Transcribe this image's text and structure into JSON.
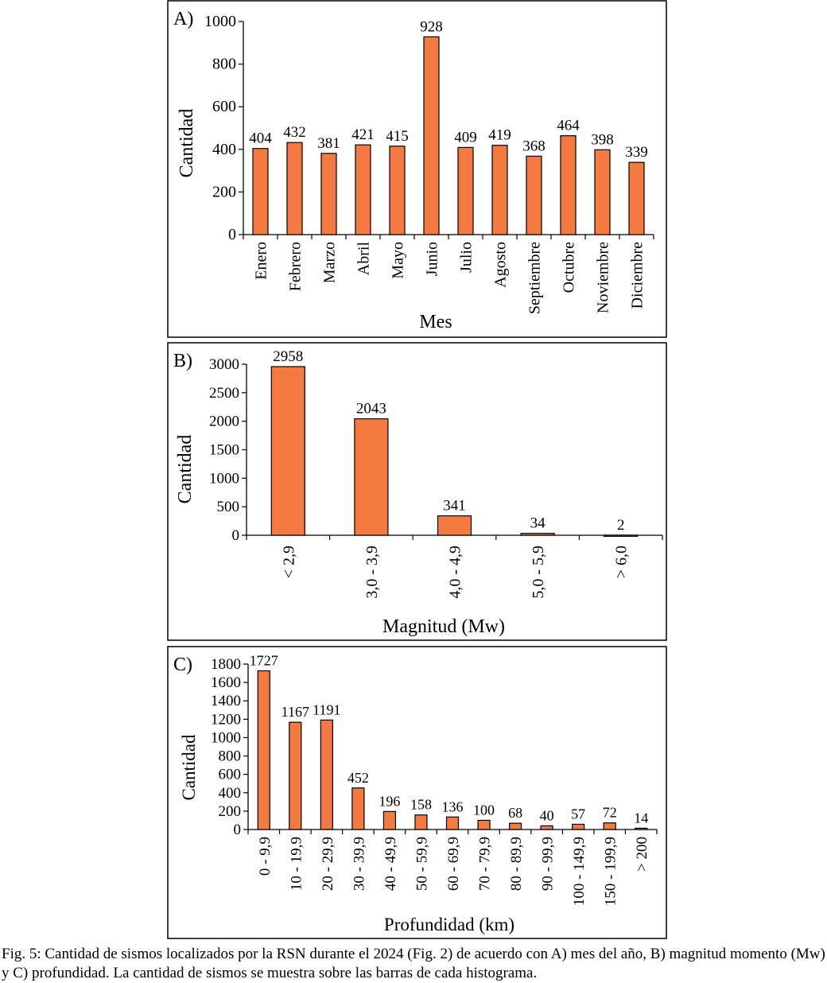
{
  "bar_color": "#F47A42",
  "chart_data": [
    {
      "type": "bar",
      "panel_label": "A)",
      "xlabel": "Mes",
      "ylabel": "Cantidad",
      "ylim": [
        0,
        1000
      ],
      "yticks": [
        0,
        200,
        400,
        600,
        800,
        1000
      ],
      "categories": [
        "Enero",
        "Febrero",
        "Marzo",
        "Abril",
        "Mayo",
        "Junio",
        "Julio",
        "Agosto",
        "Septiembre",
        "Octubre",
        "Noviembre",
        "Diciembre"
      ],
      "values": [
        404,
        432,
        381,
        421,
        415,
        928,
        409,
        419,
        368,
        464,
        398,
        339
      ]
    },
    {
      "type": "bar",
      "panel_label": "B)",
      "xlabel": "Magnitud (Mw)",
      "ylabel": "Cantidad",
      "ylim": [
        0,
        3000
      ],
      "yticks": [
        0,
        500,
        1000,
        1500,
        2000,
        2500,
        3000
      ],
      "categories": [
        "< 2,9",
        "3,0 - 3,9",
        "4,0 - 4,9",
        "5,0 - 5,9",
        "> 6,0"
      ],
      "values": [
        2958,
        2043,
        341,
        34,
        2
      ]
    },
    {
      "type": "bar",
      "panel_label": "C)",
      "xlabel": "Profundidad (km)",
      "ylabel": "Cantidad",
      "ylim": [
        0,
        1800
      ],
      "yticks": [
        0,
        200,
        400,
        600,
        800,
        1000,
        1200,
        1400,
        1600,
        1800
      ],
      "categories": [
        "0 - 9,9",
        "10 - 19,9",
        "20 - 29,9",
        "30 - 39,9",
        "40 - 49,9",
        "50 - 59,9",
        "60 - 69,9",
        "70 - 79,9",
        "80 - 89,9",
        "90 - 99,9",
        "100 - 149,9",
        "150 - 199,9",
        "> 200"
      ],
      "values": [
        1727,
        1167,
        1191,
        452,
        196,
        158,
        136,
        100,
        68,
        40,
        57,
        72,
        14
      ]
    }
  ],
  "caption": "Fig. 5: Cantidad de sismos localizados por la RSN durante el 2024 (Fig. 2) de acuerdo con A) mes del año, B) magnitud momento (Mw) y C) profundidad. La cantidad de sismos se muestra sobre las barras de cada histograma."
}
